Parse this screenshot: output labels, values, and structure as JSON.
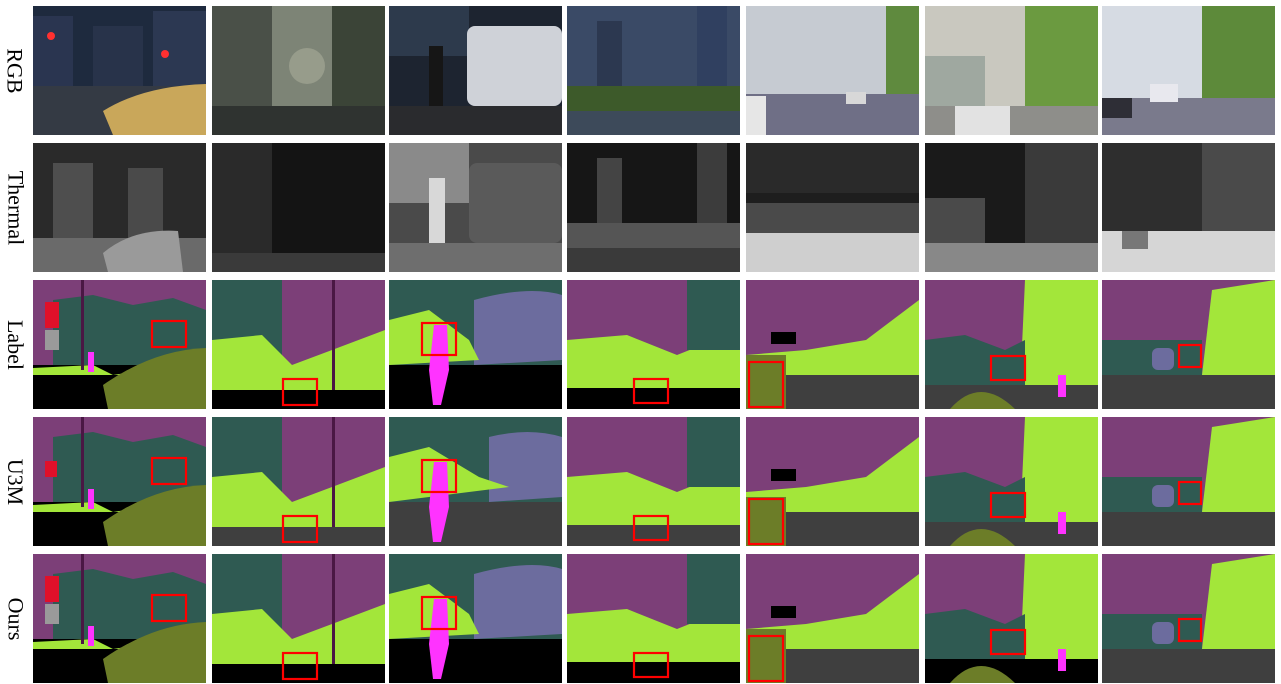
{
  "rows": [
    {
      "label": "RGB"
    },
    {
      "label": "Thermal"
    },
    {
      "label": "Label"
    },
    {
      "label": "U3M"
    },
    {
      "label": "Ours"
    }
  ],
  "palette": {
    "sky": "#7c3f78",
    "building": "#2f5a52",
    "vegetation": "#a3e63a",
    "terrain": "#6c7d28",
    "road": "#3f3f3f",
    "person": "#ff33ff",
    "car": "#6c6c9e",
    "pole": "#4a1744",
    "highlight": "#ff0000"
  }
}
